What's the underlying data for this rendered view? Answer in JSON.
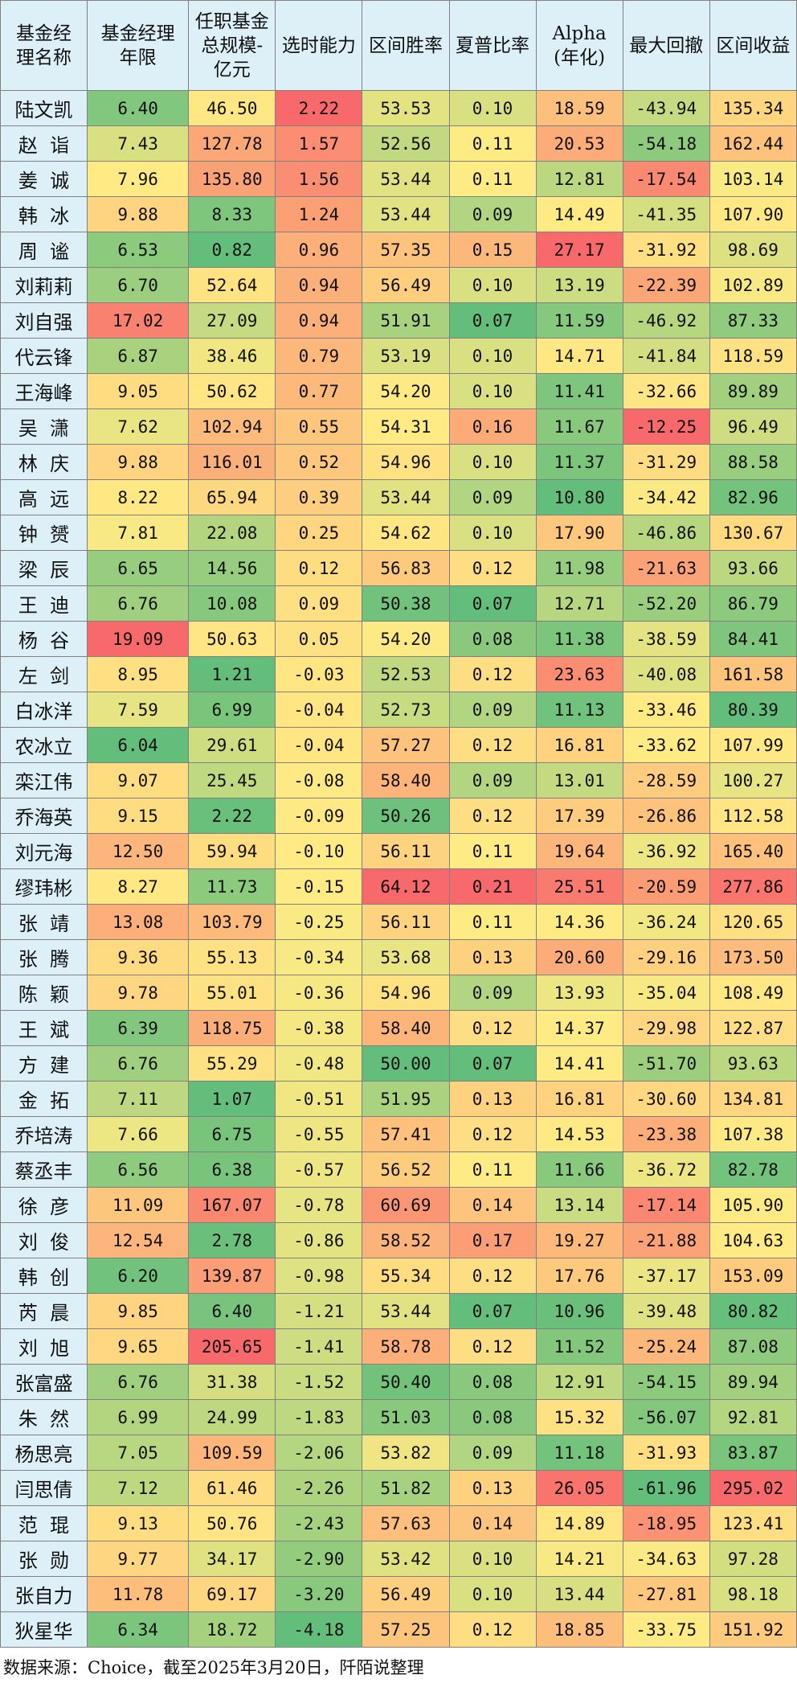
{
  "columns": [
    "基金经理名称",
    "基金经理年限",
    "任职基金总规模-亿元",
    "选时能力",
    "区间胜率",
    "夏普比率",
    "Alpha(年化)",
    "最大回撤",
    "区间收益"
  ],
  "column_lines": [
    [
      "基金经",
      "理名称"
    ],
    [
      "基金经理",
      "年限"
    ],
    [
      "任职基金",
      "总规模-",
      "亿元"
    ],
    [
      "选时能力"
    ],
    [
      "区间胜率"
    ],
    [
      "夏普比率"
    ],
    [
      "Alpha",
      "(年化)"
    ],
    [
      "最大回撤"
    ],
    [
      "区间收益"
    ]
  ],
  "rows": [
    [
      "陆文凯",
      "6.40",
      "46.50",
      "2.22",
      "53.53",
      "0.10",
      "18.59",
      "-43.94",
      "135.34"
    ],
    [
      "赵  诣",
      "7.43",
      "127.78",
      "1.57",
      "52.56",
      "0.11",
      "20.53",
      "-54.18",
      "162.44"
    ],
    [
      "姜  诚",
      "7.96",
      "135.80",
      "1.56",
      "53.44",
      "0.11",
      "12.81",
      "-17.54",
      "103.14"
    ],
    [
      "韩  冰",
      "9.88",
      "8.33",
      "1.24",
      "53.44",
      "0.09",
      "14.49",
      "-41.35",
      "107.90"
    ],
    [
      "周  谧",
      "6.53",
      "0.82",
      "0.96",
      "57.35",
      "0.15",
      "27.17",
      "-31.92",
      "98.69"
    ],
    [
      "刘莉莉",
      "6.70",
      "52.64",
      "0.94",
      "56.49",
      "0.10",
      "13.19",
      "-22.39",
      "102.89"
    ],
    [
      "刘自强",
      "17.02",
      "27.09",
      "0.94",
      "51.91",
      "0.07",
      "11.59",
      "-46.92",
      "87.33"
    ],
    [
      "代云锋",
      "6.87",
      "38.46",
      "0.79",
      "53.19",
      "0.10",
      "14.71",
      "-41.84",
      "118.59"
    ],
    [
      "王海峰",
      "9.05",
      "50.62",
      "0.77",
      "54.20",
      "0.10",
      "11.41",
      "-32.66",
      "89.89"
    ],
    [
      "吴  潇",
      "7.62",
      "102.94",
      "0.55",
      "54.31",
      "0.16",
      "11.67",
      "-12.25",
      "96.49"
    ],
    [
      "林  庆",
      "9.88",
      "116.01",
      "0.52",
      "54.96",
      "0.10",
      "11.37",
      "-31.29",
      "88.58"
    ],
    [
      "高  远",
      "8.22",
      "65.94",
      "0.39",
      "53.44",
      "0.09",
      "10.80",
      "-34.42",
      "82.96"
    ],
    [
      "钟  赟",
      "7.81",
      "22.08",
      "0.25",
      "54.62",
      "0.10",
      "17.90",
      "-46.86",
      "130.67"
    ],
    [
      "梁  辰",
      "6.65",
      "14.56",
      "0.12",
      "56.83",
      "0.12",
      "11.98",
      "-21.63",
      "93.66"
    ],
    [
      "王  迪",
      "6.76",
      "10.08",
      "0.09",
      "50.38",
      "0.07",
      "12.71",
      "-52.20",
      "86.79"
    ],
    [
      "杨  谷",
      "19.09",
      "50.63",
      "0.05",
      "54.20",
      "0.08",
      "11.38",
      "-38.59",
      "84.41"
    ],
    [
      "左  剑",
      "8.95",
      "1.21",
      "-0.03",
      "52.53",
      "0.12",
      "23.63",
      "-40.08",
      "161.58"
    ],
    [
      "白冰洋",
      "7.59",
      "6.99",
      "-0.04",
      "52.73",
      "0.09",
      "11.13",
      "-33.46",
      "80.39"
    ],
    [
      "农冰立",
      "6.04",
      "29.61",
      "-0.04",
      "57.27",
      "0.12",
      "16.81",
      "-33.62",
      "107.99"
    ],
    [
      "栾江伟",
      "9.07",
      "25.45",
      "-0.08",
      "58.40",
      "0.09",
      "13.01",
      "-28.59",
      "100.27"
    ],
    [
      "乔海英",
      "9.15",
      "2.22",
      "-0.09",
      "50.26",
      "0.12",
      "17.39",
      "-26.86",
      "112.58"
    ],
    [
      "刘元海",
      "12.50",
      "59.94",
      "-0.10",
      "56.11",
      "0.11",
      "19.64",
      "-36.92",
      "165.40"
    ],
    [
      "缪玮彬",
      "8.27",
      "11.73",
      "-0.15",
      "64.12",
      "0.21",
      "25.51",
      "-20.59",
      "277.86"
    ],
    [
      "张  靖",
      "13.08",
      "103.79",
      "-0.25",
      "56.11",
      "0.11",
      "14.36",
      "-36.24",
      "120.65"
    ],
    [
      "张  腾",
      "9.36",
      "55.13",
      "-0.34",
      "53.68",
      "0.13",
      "20.60",
      "-29.16",
      "173.50"
    ],
    [
      "陈  颖",
      "9.78",
      "55.01",
      "-0.36",
      "54.96",
      "0.09",
      "13.93",
      "-35.04",
      "108.49"
    ],
    [
      "王  斌",
      "6.39",
      "118.75",
      "-0.38",
      "58.40",
      "0.12",
      "14.37",
      "-29.98",
      "122.87"
    ],
    [
      "方  建",
      "6.76",
      "55.29",
      "-0.48",
      "50.00",
      "0.07",
      "14.41",
      "-51.70",
      "93.63"
    ],
    [
      "金  拓",
      "7.11",
      "1.07",
      "-0.51",
      "51.95",
      "0.13",
      "16.81",
      "-30.60",
      "134.81"
    ],
    [
      "乔培涛",
      "7.66",
      "6.75",
      "-0.55",
      "57.41",
      "0.12",
      "14.53",
      "-23.38",
      "107.38"
    ],
    [
      "蔡丞丰",
      "6.56",
      "6.38",
      "-0.57",
      "56.52",
      "0.11",
      "11.66",
      "-36.72",
      "82.78"
    ],
    [
      "徐  彦",
      "11.09",
      "167.07",
      "-0.78",
      "60.69",
      "0.14",
      "13.14",
      "-17.14",
      "105.90"
    ],
    [
      "刘  俊",
      "12.54",
      "2.78",
      "-0.86",
      "58.52",
      "0.17",
      "19.27",
      "-21.88",
      "104.63"
    ],
    [
      "韩  创",
      "6.20",
      "139.87",
      "-0.98",
      "55.34",
      "0.12",
      "17.76",
      "-37.17",
      "153.09"
    ],
    [
      "芮  晨",
      "9.85",
      "6.40",
      "-1.21",
      "53.44",
      "0.07",
      "10.96",
      "-39.48",
      "80.82"
    ],
    [
      "刘  旭",
      "9.65",
      "205.65",
      "-1.41",
      "58.78",
      "0.12",
      "11.52",
      "-25.24",
      "87.08"
    ],
    [
      "张富盛",
      "6.76",
      "31.38",
      "-1.52",
      "50.40",
      "0.08",
      "12.91",
      "-54.15",
      "89.94"
    ],
    [
      "朱  然",
      "6.99",
      "24.99",
      "-1.83",
      "51.03",
      "0.08",
      "15.32",
      "-56.07",
      "92.81"
    ],
    [
      "杨思亮",
      "7.05",
      "109.59",
      "-2.06",
      "53.82",
      "0.09",
      "11.18",
      "-31.93",
      "83.87"
    ],
    [
      "闫思倩",
      "7.12",
      "61.46",
      "-2.26",
      "51.82",
      "0.13",
      "26.05",
      "-61.96",
      "295.02"
    ],
    [
      "范  琨",
      "9.13",
      "50.76",
      "-2.43",
      "57.63",
      "0.14",
      "14.89",
      "-18.95",
      "123.41"
    ],
    [
      "张  勋",
      "9.77",
      "34.17",
      "-2.90",
      "53.42",
      "0.10",
      "14.21",
      "-34.63",
      "97.28"
    ],
    [
      "张自力",
      "11.78",
      "69.17",
      "-3.20",
      "56.49",
      "0.10",
      "13.44",
      "-27.81",
      "98.18"
    ],
    [
      "狄星华",
      "6.34",
      "18.72",
      "-4.18",
      "57.25",
      "0.12",
      "18.85",
      "-33.75",
      "151.92"
    ]
  ],
  "heat_colors": {
    "low": "#63BE7B",
    "mid": "#FFEB84",
    "high": "#F8696B"
  },
  "header_color": "#DDF0F8",
  "source_note": "数据来源：Choice，截至2025年3月20日，阡陌说整理"
}
